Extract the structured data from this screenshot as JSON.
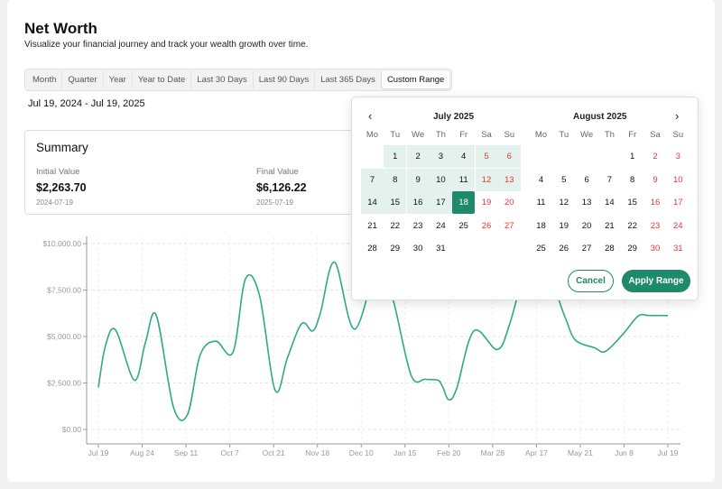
{
  "page": {
    "title": "Net Worth",
    "subtitle": "Visualize your financial journey and track your wealth growth over time."
  },
  "tabs": [
    "Month",
    "Quarter",
    "Year",
    "Year to Date",
    "Last 30 Days",
    "Last 90 Days",
    "Last 365 Days",
    "Custom Range"
  ],
  "active_tab": "Custom Range",
  "range_label": "Jul 19, 2024 - Jul 19, 2025",
  "summary": {
    "title": "Summary",
    "initial_label": "Initial Value",
    "initial_value": "$2,263.70",
    "initial_date": "2024-07-19",
    "final_label": "Final Value",
    "final_value": "$6,126.22",
    "final_date": "2025-07-19"
  },
  "calendar": {
    "prev_icon": "‹",
    "next_icon": "›",
    "weekdays": [
      "Mo",
      "Tu",
      "We",
      "Th",
      "Fr",
      "Sa",
      "Su"
    ],
    "months": [
      {
        "title": "July 2025",
        "weeks": [
          [
            "",
            "1",
            "2",
            "3",
            "4",
            "5",
            "6"
          ],
          [
            "7",
            "8",
            "9",
            "10",
            "11",
            "12",
            "13"
          ],
          [
            "14",
            "15",
            "16",
            "17",
            "18",
            "19",
            "20"
          ],
          [
            "21",
            "22",
            "23",
            "24",
            "25",
            "26",
            "27"
          ],
          [
            "28",
            "29",
            "30",
            "31",
            "",
            "",
            ""
          ]
        ],
        "range_through": 17,
        "range_end": 18
      },
      {
        "title": "August 2025",
        "weeks": [
          [
            "",
            "",
            "",
            "",
            "1",
            "2",
            "3"
          ],
          [
            "4",
            "5",
            "6",
            "7",
            "8",
            "9",
            "10"
          ],
          [
            "11",
            "12",
            "13",
            "14",
            "15",
            "16",
            "17"
          ],
          [
            "18",
            "19",
            "20",
            "21",
            "22",
            "23",
            "24"
          ],
          [
            "25",
            "26",
            "27",
            "28",
            "29",
            "30",
            "31"
          ]
        ],
        "range_through": 0,
        "range_end": 0
      }
    ],
    "cancel_label": "Cancel",
    "apply_label": "Apply Range",
    "accent": "#1e8a68",
    "weekend_color": "#e53935",
    "range_fill": "#e4f1ec"
  },
  "chart_data": {
    "type": "line",
    "x_tick_labels": [
      "Jul 19",
      "Aug 24",
      "Sep 11",
      "Oct 7",
      "Oct 21",
      "Nov 18",
      "Dec 10",
      "Jan 15",
      "Feb 20",
      "Mar 28",
      "Apr 17",
      "May 21",
      "Jun 8",
      "Jul 19"
    ],
    "y_tick_labels": [
      "$0.00",
      "$2,500.00",
      "$5,000.00",
      "$7,500.00",
      "$10,000.00"
    ],
    "ylim": [
      0,
      10000
    ],
    "yticks": [
      0,
      2500,
      5000,
      7500,
      10000
    ],
    "grid": true,
    "line_color": "#2eaa84",
    "series": [
      {
        "x": [
          0,
          4.5,
          11,
          23,
          30,
          37,
          48,
          57,
          65,
          75,
          86,
          94,
          103,
          113,
          121,
          130,
          137,
          142,
          151,
          164,
          180,
          183,
          189,
          200,
          209,
          217,
          220,
          224,
          229,
          240,
          255,
          263,
          274,
          282,
          295,
          299,
          305,
          317,
          324,
          335,
          345,
          352,
          364
        ],
        "y": [
          2260,
          4500,
          5350,
          2650,
          4650,
          6150,
          1200,
          800,
          4000,
          4750,
          4150,
          8100,
          7200,
          2100,
          3900,
          5700,
          5300,
          6300,
          9000,
          5400,
          9700,
          8200,
          6800,
          2900,
          2700,
          2650,
          2300,
          1600,
          2200,
          5300,
          4300,
          5700,
          9000,
          10000,
          6800,
          5900,
          4800,
          4400,
          4200,
          5100,
          6100,
          6130,
          6126
        ]
      }
    ]
  }
}
